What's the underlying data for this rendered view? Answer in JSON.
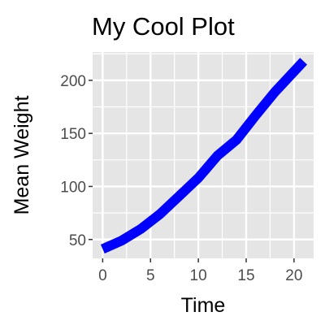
{
  "chart_data": {
    "type": "line",
    "title": "My Cool Plot",
    "xlabel": "Time",
    "ylabel": "Mean Weight",
    "xlim": [
      -1.05,
      22.05
    ],
    "ylim": [
      32.2,
      226.7
    ],
    "xticks": [
      0,
      5,
      10,
      15,
      20
    ],
    "yticks": [
      50,
      100,
      150,
      200
    ],
    "xtick_labels": [
      "0",
      "5",
      "10",
      "15",
      "20"
    ],
    "ytick_labels": [
      "50",
      "100",
      "150",
      "200"
    ],
    "grid": true,
    "legend": "none",
    "series": [
      {
        "color": "#0000ff",
        "x": [
          0,
          2,
          4,
          6,
          8,
          10,
          12,
          14,
          16,
          18,
          21
        ],
        "y": [
          41,
          49,
          60,
          74,
          91,
          108,
          129,
          144,
          167,
          189,
          218
        ]
      }
    ]
  },
  "colors": {
    "panel": "#e5e5e5",
    "grid_major": "#ffffff",
    "line": "#0000ff"
  }
}
